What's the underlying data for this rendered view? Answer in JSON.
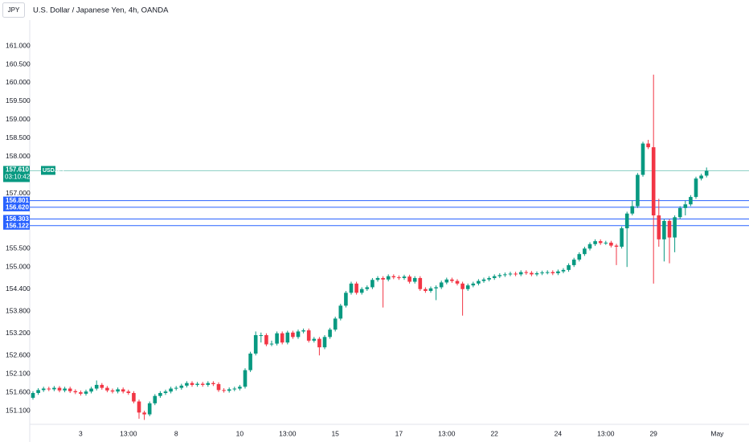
{
  "header": {
    "symbol_box": "JPY",
    "title": "U.S. Dollar / Japanese Yen, 4h, OANDA"
  },
  "chart_data": {
    "type": "candlestick",
    "categories": [
      null,
      null,
      null,
      null,
      null,
      null,
      null,
      null,
      null,
      "3",
      null,
      null,
      null,
      null,
      null,
      null,
      null,
      null,
      "13:00",
      null,
      null,
      null,
      null,
      null,
      null,
      null,
      null,
      "8",
      null,
      null,
      null,
      null,
      null,
      null,
      null,
      null,
      null,
      null,
      null,
      "10",
      null,
      null,
      null,
      null,
      null,
      null,
      null,
      null,
      "13:00",
      null,
      null,
      null,
      null,
      null,
      null,
      null,
      null,
      "15",
      null,
      null,
      null,
      null,
      null,
      null,
      null,
      null,
      null,
      null,
      null,
      "17",
      null,
      null,
      null,
      null,
      null,
      null,
      null,
      null,
      "13:00",
      null,
      null,
      null,
      null,
      null,
      null,
      null,
      null,
      "22",
      null,
      null,
      null,
      null,
      null,
      null,
      null,
      null,
      null,
      null,
      null,
      "24",
      null,
      null,
      null,
      null,
      null,
      null,
      null,
      null,
      "13:00",
      null,
      null,
      null,
      null,
      null,
      null,
      null,
      null,
      "29",
      null,
      null,
      null,
      null,
      null,
      null,
      null,
      null,
      null,
      null,
      null,
      "May"
    ],
    "open": [
      151.45,
      151.58,
      151.66,
      151.7,
      151.68,
      151.72,
      151.65,
      151.7,
      151.63,
      151.6,
      151.56,
      151.62,
      151.7,
      151.8,
      151.72,
      151.65,
      151.62,
      151.68,
      151.62,
      151.58,
      151.35,
      151.05,
      151.0,
      151.3,
      151.5,
      151.58,
      151.62,
      151.7,
      151.72,
      151.78,
      151.85,
      151.8,
      151.83,
      151.8,
      151.85,
      151.82,
      151.66,
      151.64,
      151.68,
      151.7,
      151.75,
      152.2,
      152.65,
      153.15,
      153.15,
      152.9,
      152.92,
      153.2,
      152.95,
      153.22,
      153.1,
      153.25,
      153.28,
      153.0,
      153.05,
      152.82,
      153.1,
      153.3,
      153.6,
      153.95,
      154.3,
      154.55,
      154.3,
      154.4,
      154.45,
      154.65,
      154.7,
      154.66,
      154.75,
      154.72,
      154.7,
      154.74,
      154.6,
      154.7,
      154.4,
      154.35,
      154.42,
      154.45,
      154.58,
      154.66,
      154.62,
      154.55,
      154.4,
      154.5,
      154.55,
      154.62,
      154.66,
      154.7,
      154.75,
      154.78,
      154.8,
      154.82,
      154.8,
      154.86,
      154.84,
      154.8,
      154.83,
      154.85,
      154.86,
      154.83,
      154.88,
      154.92,
      155.05,
      155.2,
      155.35,
      155.5,
      155.62,
      155.7,
      155.65,
      155.66,
      155.58,
      155.55,
      156.05,
      156.45,
      156.65,
      157.5,
      158.35,
      158.25,
      156.4,
      155.75,
      156.25,
      155.8,
      156.35,
      156.6,
      156.7,
      156.9,
      157.4,
      157.48,
      null,
      null
    ],
    "high": [
      151.63,
      151.71,
      151.75,
      151.75,
      151.77,
      151.77,
      151.75,
      151.75,
      151.68,
      151.65,
      151.67,
      151.75,
      151.92,
      151.85,
      151.77,
      151.7,
      151.73,
      151.73,
      151.67,
      151.63,
      151.4,
      151.1,
      151.35,
      151.55,
      151.63,
      151.67,
      151.75,
      151.77,
      151.83,
      151.9,
      151.9,
      151.88,
      151.88,
      151.9,
      151.9,
      151.87,
      151.71,
      151.73,
      151.75,
      151.8,
      152.25,
      152.7,
      153.25,
      153.22,
      153.2,
      153.0,
      153.25,
      153.25,
      153.27,
      153.27,
      153.3,
      153.33,
      153.33,
      153.1,
      153.1,
      153.15,
      153.35,
      153.65,
      154.0,
      154.35,
      154.6,
      154.6,
      154.45,
      154.5,
      154.7,
      154.75,
      154.75,
      154.8,
      154.8,
      154.77,
      154.79,
      154.79,
      154.75,
      154.75,
      154.45,
      154.47,
      154.5,
      154.63,
      154.71,
      154.71,
      154.67,
      154.6,
      154.55,
      154.6,
      154.67,
      154.71,
      154.75,
      154.8,
      154.83,
      154.85,
      154.87,
      154.87,
      154.91,
      154.91,
      154.89,
      154.88,
      154.9,
      154.91,
      154.91,
      154.93,
      154.97,
      155.1,
      155.25,
      155.4,
      155.55,
      155.67,
      155.75,
      155.75,
      155.71,
      155.71,
      155.63,
      156.1,
      156.5,
      156.8,
      157.55,
      158.4,
      158.45,
      160.22,
      156.85,
      156.3,
      156.3,
      156.4,
      156.65,
      156.8,
      156.95,
      157.45,
      157.53,
      157.7,
      null,
      null
    ],
    "low": [
      151.4,
      151.53,
      151.61,
      151.63,
      151.63,
      151.6,
      151.6,
      151.58,
      151.55,
      151.51,
      151.51,
      151.57,
      151.65,
      151.67,
      151.6,
      151.57,
      151.57,
      151.57,
      151.53,
      151.3,
      150.88,
      150.85,
      150.95,
      151.25,
      151.45,
      151.53,
      151.57,
      151.65,
      151.67,
      151.73,
      151.75,
      151.75,
      151.75,
      151.75,
      151.77,
      151.61,
      151.59,
      151.59,
      151.63,
      151.65,
      151.7,
      152.15,
      152.6,
      152.95,
      152.85,
      152.85,
      152.87,
      152.9,
      152.9,
      153.05,
      153.05,
      153.2,
      152.95,
      152.95,
      152.6,
      152.77,
      153.05,
      153.25,
      153.55,
      153.9,
      154.25,
      154.25,
      154.25,
      154.35,
      154.4,
      154.6,
      153.9,
      154.61,
      154.67,
      154.65,
      154.65,
      154.55,
      154.55,
      154.35,
      154.3,
      154.3,
      154.1,
      154.4,
      154.53,
      154.57,
      154.5,
      153.68,
      154.35,
      154.45,
      154.5,
      154.57,
      154.61,
      154.65,
      154.7,
      154.73,
      154.75,
      154.75,
      154.75,
      154.79,
      154.75,
      154.75,
      154.78,
      154.8,
      154.78,
      154.78,
      154.83,
      154.87,
      155.0,
      155.15,
      155.3,
      155.45,
      155.57,
      155.6,
      155.6,
      155.53,
      155.05,
      155.5,
      155.0,
      156.4,
      156.6,
      157.45,
      158.2,
      154.55,
      155.55,
      155.15,
      155.1,
      155.4,
      156.3,
      156.4,
      156.65,
      156.85,
      157.35,
      157.43,
      null,
      null
    ],
    "close": [
      151.58,
      151.66,
      151.7,
      151.68,
      151.72,
      151.65,
      151.7,
      151.63,
      151.6,
      151.56,
      151.62,
      151.7,
      151.8,
      151.72,
      151.65,
      151.62,
      151.68,
      151.62,
      151.58,
      151.35,
      151.05,
      151.0,
      151.3,
      151.5,
      151.58,
      151.62,
      151.7,
      151.72,
      151.78,
      151.85,
      151.8,
      151.83,
      151.8,
      151.85,
      151.82,
      151.66,
      151.64,
      151.68,
      151.7,
      151.75,
      152.2,
      152.65,
      153.15,
      153.15,
      152.9,
      152.92,
      153.2,
      152.95,
      153.22,
      153.1,
      153.25,
      153.28,
      153.0,
      153.05,
      152.82,
      153.1,
      153.3,
      153.6,
      153.95,
      154.3,
      154.55,
      154.3,
      154.4,
      154.45,
      154.65,
      154.7,
      154.66,
      154.75,
      154.72,
      154.7,
      154.74,
      154.6,
      154.7,
      154.4,
      154.35,
      154.42,
      154.45,
      154.58,
      154.66,
      154.62,
      154.55,
      154.4,
      154.5,
      154.55,
      154.62,
      154.66,
      154.7,
      154.75,
      154.78,
      154.8,
      154.82,
      154.8,
      154.86,
      154.84,
      154.8,
      154.83,
      154.85,
      154.86,
      154.83,
      154.88,
      154.92,
      155.05,
      155.2,
      155.35,
      155.5,
      155.62,
      155.7,
      155.65,
      155.66,
      155.58,
      155.55,
      156.05,
      156.45,
      156.65,
      157.5,
      158.35,
      158.25,
      156.4,
      155.75,
      156.25,
      155.8,
      156.35,
      156.6,
      156.7,
      156.9,
      157.4,
      157.48,
      157.61,
      null,
      null
    ],
    "up_color": "#089981",
    "down_color": "#f23645",
    "ylim": [
      150.73,
      161.7
    ],
    "yticks": [
      {
        "value": 161,
        "label": "161.000"
      },
      {
        "value": 160.5,
        "label": "160.500"
      },
      {
        "value": 160,
        "label": "160.000"
      },
      {
        "value": 159.5,
        "label": "159.500"
      },
      {
        "value": 159,
        "label": "159.000"
      },
      {
        "value": 158.5,
        "label": "158.500"
      },
      {
        "value": 158,
        "label": "158.000"
      },
      {
        "value": 157,
        "label": "157.000"
      },
      {
        "value": 155.5,
        "label": "155.500"
      },
      {
        "value": 155,
        "label": "155.000"
      },
      {
        "value": 154.4,
        "label": "154.400"
      },
      {
        "value": 153.8,
        "label": "153.800"
      },
      {
        "value": 153.2,
        "label": "153.200"
      },
      {
        "value": 152.6,
        "label": "152.600"
      },
      {
        "value": 152.1,
        "label": "152.100"
      },
      {
        "value": 151.6,
        "label": "151.600"
      },
      {
        "value": 151.1,
        "label": "151.100"
      }
    ],
    "last_price": {
      "value": 157.61,
      "label": "157.610",
      "symbol": "USDJPY",
      "countdown": "03:10:42",
      "color": "#089981"
    },
    "levels": [
      {
        "value": 156.801,
        "label": "156.801"
      },
      {
        "value": 156.62,
        "label": "156.620"
      },
      {
        "value": 156.303,
        "label": "156.303"
      },
      {
        "value": 156.122,
        "label": "156.122"
      }
    ],
    "levels_color": "#2962ff"
  }
}
